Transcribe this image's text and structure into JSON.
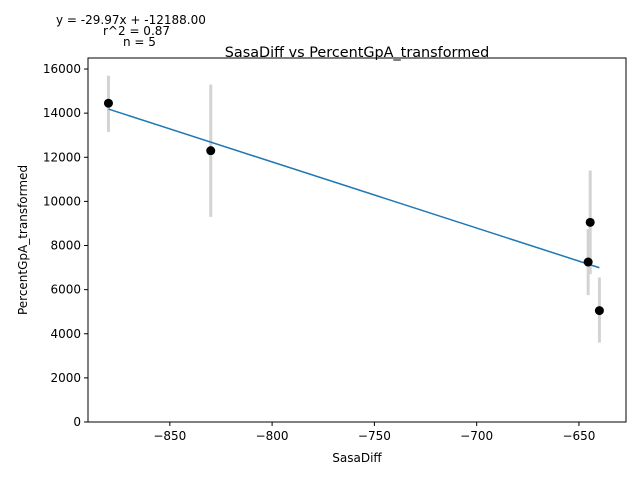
{
  "chart_data": {
    "type": "scatter",
    "title": "SasaDiff vs PercentGpA_transformed",
    "xlabel": "SasaDiff",
    "ylabel": "PercentGpA_transformed",
    "xlim": [
      -890,
      -627
    ],
    "ylim": [
      0,
      16500
    ],
    "xticks": [
      -850,
      -800,
      -750,
      -700,
      -650
    ],
    "yticks": [
      0,
      2000,
      4000,
      6000,
      8000,
      10000,
      12000,
      14000,
      16000
    ],
    "xtick_labels": [
      "−850",
      "−800",
      "−750",
      "−700",
      "−650"
    ],
    "ytick_labels": [
      "0",
      "2000",
      "4000",
      "6000",
      "8000",
      "10000",
      "12000",
      "14000",
      "16000"
    ],
    "grid": false,
    "points": [
      {
        "x": -880,
        "y": 14450,
        "err_low": 13150,
        "err_high": 15700
      },
      {
        "x": -830,
        "y": 12300,
        "err_low": 9300,
        "err_high": 15300
      },
      {
        "x": -645.5,
        "y": 7250,
        "err_low": 5750,
        "err_high": 8750
      },
      {
        "x": -644.5,
        "y": 9050,
        "err_low": 6700,
        "err_high": 11400
      },
      {
        "x": -640,
        "y": 5050,
        "err_low": 3600,
        "err_high": 6550
      }
    ],
    "fit_line": {
      "slope": -29.97,
      "intercept": -12188.0,
      "x_range": [
        -880,
        -640
      ]
    },
    "annotations": {
      "equation": "y = -29.97x + -12188.00",
      "r2": "r^2 = 0.87",
      "n": "n = 5"
    },
    "colors": {
      "points": "#000000",
      "errorbars": "#d3d3d3",
      "fit": "#1f77b4"
    }
  }
}
